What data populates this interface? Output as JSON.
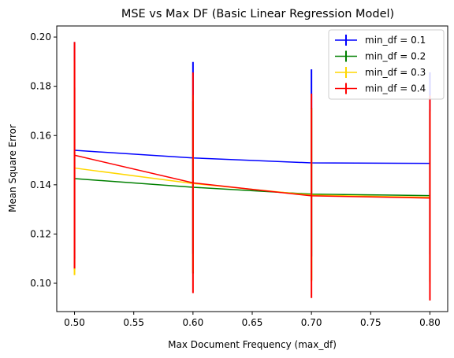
{
  "chart_data": {
    "type": "line",
    "title": "MSE vs Max DF (Basic Linear Regression Model)",
    "xlabel": "Max Document Frequency (max_df)",
    "ylabel": "Mean Square Error",
    "xlim": [
      0.485,
      0.815
    ],
    "ylim": [
      0.0885,
      0.2045
    ],
    "xticks": [
      "0.50",
      "0.55",
      "0.60",
      "0.65",
      "0.70",
      "0.75",
      "0.80"
    ],
    "xtick_values": [
      0.5,
      0.55,
      0.6,
      0.65,
      0.7,
      0.75,
      0.8
    ],
    "yticks": [
      "0.10",
      "0.12",
      "0.14",
      "0.16",
      "0.18",
      "0.20"
    ],
    "ytick_values": [
      0.1,
      0.12,
      0.14,
      0.16,
      0.18,
      0.2
    ],
    "grid": false,
    "legend_position": "top-right",
    "x": [
      0.5,
      0.6,
      0.7,
      0.8
    ],
    "series": [
      {
        "name": "min_df = 0.1",
        "color": "#0000ff",
        "values": [
          0.154,
          0.1509,
          0.1489,
          0.1487
        ],
        "errors": [
          0.044,
          0.039,
          0.038,
          0.037
        ]
      },
      {
        "name": "min_df = 0.2",
        "color": "#008000",
        "values": [
          0.1425,
          0.139,
          0.1362,
          0.1356
        ],
        "errors": [
          0.037,
          0.035,
          0.035,
          0.035
        ]
      },
      {
        "name": "min_df = 0.3",
        "color": "#ffd700",
        "values": [
          0.1468,
          0.1405,
          0.1358,
          0.1349
        ],
        "errors": [
          0.0435,
          0.036,
          0.035,
          0.035
        ]
      },
      {
        "name": "min_df = 0.4",
        "color": "#ff0000",
        "values": [
          0.152,
          0.1408,
          0.1355,
          0.1346
        ],
        "errors": [
          0.046,
          0.0448,
          0.0415,
          0.0416
        ]
      }
    ]
  }
}
